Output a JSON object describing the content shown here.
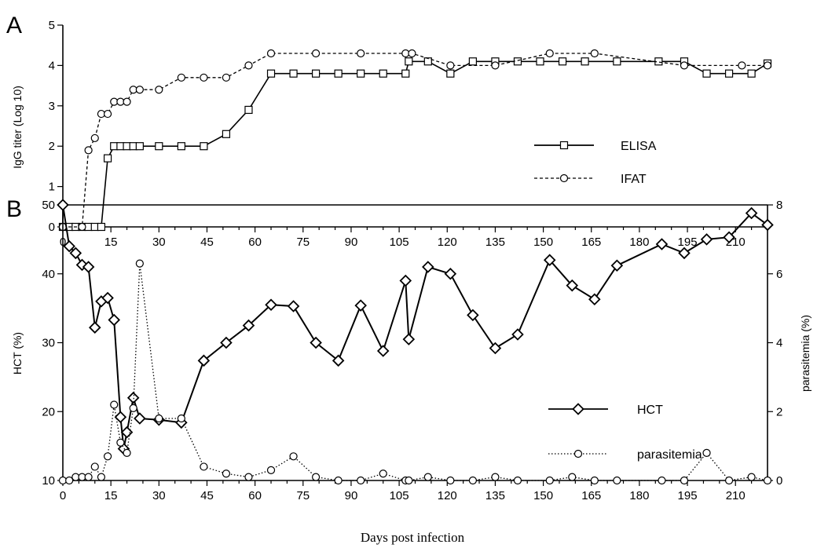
{
  "chart_data": [
    {
      "panel": "A",
      "type": "line",
      "ylabel": "IgG titer (Log 10)",
      "xlim": [
        0,
        220
      ],
      "ylim": [
        0,
        5
      ],
      "xticks": [
        0,
        15,
        30,
        45,
        60,
        75,
        90,
        105,
        120,
        135,
        150,
        165,
        180,
        195,
        210
      ],
      "yticks": [
        0,
        1,
        2,
        3,
        4,
        5
      ],
      "legend": "center-right",
      "series": [
        {
          "name": "ELISA",
          "marker": "square",
          "line": "solid",
          "x": [
            0,
            2,
            4,
            6,
            8,
            10,
            12,
            14,
            16,
            18,
            20,
            22,
            24,
            30,
            37,
            44,
            51,
            58,
            65,
            72,
            79,
            86,
            93,
            100,
            107,
            108,
            114,
            121,
            128,
            135,
            142,
            149,
            156,
            163,
            173,
            186,
            194,
            201,
            208,
            215,
            220
          ],
          "y": [
            0,
            0,
            0,
            0,
            0,
            0,
            0,
            1.7,
            2,
            2,
            2,
            2,
            2,
            2,
            2,
            2,
            2.3,
            2.9,
            3.8,
            3.8,
            3.8,
            3.8,
            3.8,
            3.8,
            3.8,
            4.1,
            4.1,
            3.8,
            4.1,
            4.1,
            4.1,
            4.1,
            4.1,
            4.1,
            4.1,
            4.1,
            4.1,
            3.8,
            3.8,
            3.8,
            4.05
          ]
        },
        {
          "name": "IFAT",
          "marker": "circle",
          "line": "dashed",
          "x": [
            0,
            6,
            8,
            10,
            12,
            14,
            16,
            18,
            20,
            22,
            24,
            30,
            37,
            44,
            51,
            58,
            65,
            79,
            93,
            107,
            109,
            121,
            135,
            152,
            166,
            194,
            212,
            220
          ],
          "y": [
            0,
            0,
            1.9,
            2.2,
            2.8,
            2.8,
            3.1,
            3.1,
            3.1,
            3.4,
            3.4,
            3.4,
            3.7,
            3.7,
            3.7,
            4.0,
            4.3,
            4.3,
            4.3,
            4.3,
            4.3,
            4.0,
            4.0,
            4.3,
            4.3,
            4.0,
            4.0,
            4.0
          ]
        }
      ]
    },
    {
      "panel": "B",
      "type": "line",
      "xlabel": "Days post infection",
      "ylabel": "HCT (%)",
      "y2label": "parasitemia (%)",
      "xlim": [
        0,
        220
      ],
      "ylim": [
        10,
        50
      ],
      "y2lim": [
        0,
        8
      ],
      "xticks": [
        0,
        15,
        30,
        45,
        60,
        75,
        90,
        105,
        120,
        135,
        150,
        165,
        180,
        195,
        210
      ],
      "yticks": [
        10,
        20,
        30,
        40,
        50
      ],
      "y2ticks": [
        0,
        2,
        4,
        6,
        8
      ],
      "legend": "center-right",
      "series": [
        {
          "name": "HCT",
          "marker": "diamond",
          "line": "solid",
          "axis": "left",
          "x": [
            0,
            2,
            4,
            6,
            8,
            10,
            12,
            14,
            16,
            18,
            19,
            20,
            22,
            24,
            30,
            37,
            44,
            51,
            58,
            65,
            72,
            79,
            86,
            93,
            100,
            107,
            108,
            114,
            121,
            128,
            135,
            142,
            152,
            159,
            166,
            173,
            187,
            194,
            201,
            208,
            215,
            220
          ],
          "y": [
            50,
            44,
            43,
            41.3,
            41,
            32.2,
            36,
            36.5,
            33.3,
            19.2,
            14.6,
            17,
            22,
            19,
            18.8,
            18.4,
            27.4,
            30,
            32.5,
            35.5,
            35.3,
            30,
            27.4,
            35.4,
            28.8,
            39,
            30.5,
            41,
            40,
            34,
            29.2,
            31.2,
            42,
            38.3,
            36.3,
            41.2,
            44.3,
            43,
            45,
            45.3,
            48.8,
            47.1
          ]
        },
        {
          "name": "parasitemia",
          "marker": "circle",
          "line": "dotted",
          "axis": "right",
          "x": [
            0,
            2,
            4,
            6,
            8,
            10,
            12,
            14,
            16,
            18,
            20,
            22,
            24,
            30,
            37,
            44,
            51,
            58,
            65,
            72,
            79,
            86,
            93,
            100,
            107,
            108,
            114,
            121,
            128,
            135,
            142,
            152,
            159,
            166,
            173,
            187,
            194,
            201,
            208,
            215,
            220
          ],
          "y": [
            0,
            0,
            0.1,
            0.1,
            0.1,
            0.4,
            0.1,
            0.7,
            2.2,
            1.1,
            0.8,
            2.1,
            6.3,
            1.8,
            1.8,
            0.4,
            0.2,
            0.1,
            0.3,
            0.7,
            0.1,
            0,
            0,
            0.2,
            0,
            0,
            0.1,
            0,
            0,
            0.1,
            0,
            0,
            0.1,
            0,
            0,
            0,
            0,
            0.8,
            0,
            0.1,
            0
          ]
        }
      ]
    }
  ]
}
